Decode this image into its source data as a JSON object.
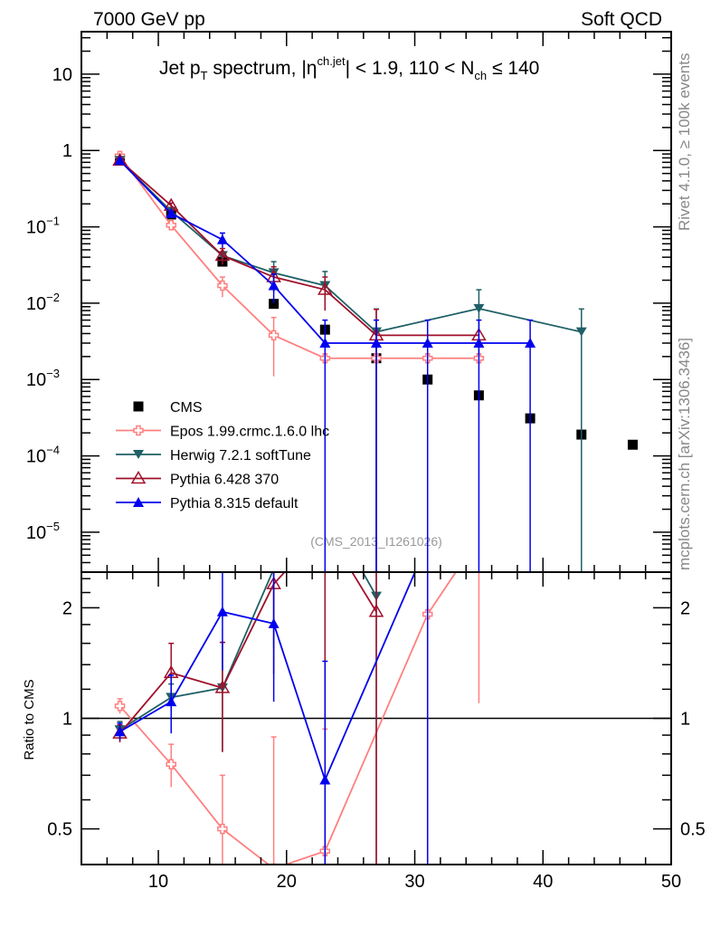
{
  "header": {
    "left": "7000 GeV pp",
    "right": "Soft QCD"
  },
  "title": {
    "a": "Jet p",
    "a_sub": "T",
    "b": " spectrum, |η",
    "b_sup": "ch.jet",
    "c": "| < 1.9, 110 < N",
    "c_sub": "ch",
    "d": " ≤ 140"
  },
  "side": {
    "rivet": "Rivet 4.1.0, ≥ 100k events",
    "mcplots": "mcplots.cern.ch [arXiv:1306.3436]"
  },
  "analysis_id": "(CMS_2013_I1261026)",
  "chart_data": [
    {
      "type": "line",
      "panel": "main",
      "xlim": [
        4,
        50
      ],
      "ylim": [
        3e-06,
        36
      ],
      "yscale": "log",
      "yticks": [
        {
          "v": 10,
          "t": "10"
        },
        {
          "v": 1,
          "t": "1"
        },
        {
          "v": 0.1,
          "t": "10",
          "e": "−1"
        },
        {
          "v": 0.01,
          "t": "10",
          "e": "−2"
        },
        {
          "v": 0.001,
          "t": "10",
          "e": "−3"
        },
        {
          "v": 0.0001,
          "t": "10",
          "e": "−4"
        },
        {
          "v": 1e-05,
          "t": "10",
          "e": "−5"
        }
      ],
      "series": [
        {
          "name": "CMS",
          "color": "#000000",
          "marker": "square",
          "line": false,
          "x": [
            7,
            11,
            15,
            19,
            23,
            27,
            31,
            35,
            39,
            43,
            47
          ],
          "y": [
            0.78,
            0.145,
            0.035,
            0.0098,
            0.0045,
            0.0019,
            0.001,
            0.00062,
            0.00031,
            0.00019,
            0.00014
          ],
          "yerr": [
            0,
            0,
            0,
            0,
            0,
            0,
            0,
            0,
            0,
            0,
            0
          ]
        },
        {
          "name": "Epos 1.99.crmc.1.6.0 lhc",
          "color": "#ff7f7f",
          "marker": "cross-open",
          "x": [
            7,
            11,
            15,
            19,
            23,
            27,
            31,
            35
          ],
          "y": [
            0.85,
            0.105,
            0.017,
            0.0038,
            0.0019,
            0.0019,
            0.0019,
            0.0019
          ],
          "yerr": [
            0.05,
            0.012,
            0.005,
            0.0027,
            0,
            0,
            0,
            0
          ]
        },
        {
          "name": "Herwig 7.2.1 softTune",
          "color": "#1f5f66",
          "marker": "tri-down",
          "x": [
            7,
            11,
            15,
            19,
            23,
            27,
            35,
            43
          ],
          "y": [
            0.74,
            0.16,
            0.042,
            0.025,
            0.017,
            0.0042,
            0.0085,
            0.0042
          ],
          "yerr": [
            0.03,
            0.01,
            0.005,
            0.01,
            0.009,
            0.0042,
            0.0065,
            0.0042
          ]
        },
        {
          "name": "Pythia 6.428 370",
          "color": "#a0102a",
          "marker": "tri-up-open",
          "x": [
            7,
            11,
            15,
            19,
            23,
            27,
            35
          ],
          "y": [
            0.74,
            0.19,
            0.042,
            0.022,
            0.015,
            0.0038,
            0.0038
          ],
          "yerr": [
            0.03,
            0.015,
            0.01,
            0.008,
            0.007,
            0.0045,
            0
          ]
        },
        {
          "name": "Pythia 8.315 default",
          "color": "#0000ee",
          "marker": "tri-up",
          "x": [
            7,
            11,
            15,
            19,
            23,
            27,
            31,
            35,
            39
          ],
          "y": [
            0.74,
            0.15,
            0.068,
            0.017,
            0.003,
            0.003,
            0.003,
            0.003,
            0.003
          ],
          "yerr": [
            0.03,
            0.01,
            0.015,
            0.007,
            0.003,
            0.003,
            0.003,
            0.003,
            0.003
          ]
        }
      ]
    },
    {
      "type": "line",
      "panel": "ratio",
      "ylabel": "Ratio to CMS",
      "xlim": [
        4,
        50
      ],
      "ylim": [
        0.4,
        2.5
      ],
      "yscale": "log",
      "xticks": [
        10,
        20,
        30,
        40
      ],
      "yticks": [
        {
          "v": 0.5,
          "t": "0.5"
        },
        {
          "v": 1,
          "t": "1"
        },
        {
          "v": 2,
          "t": "2"
        }
      ],
      "series": [
        {
          "name": "Epos",
          "color": "#ff7f7f",
          "marker": "cross-open",
          "x": [
            7,
            11,
            15,
            19,
            23,
            31,
            35
          ],
          "y": [
            1.08,
            0.75,
            0.5,
            0.39,
            0.435,
            1.92,
            3.1
          ],
          "yerr": [
            0.05,
            0.1,
            0.2,
            0.5,
            0.5,
            2,
            2
          ]
        },
        {
          "name": "Herwig",
          "color": "#1f5f66",
          "marker": "tri-down",
          "x": [
            7,
            11,
            15,
            19,
            23,
            27
          ],
          "y": [
            0.93,
            1.14,
            1.21,
            2.55,
            3.8,
            2.15
          ],
          "yerr": [
            0.05,
            0.1,
            0.4,
            1,
            3.8,
            2.2
          ]
        },
        {
          "name": "Pythia6",
          "color": "#a0102a",
          "marker": "tri-up-open",
          "x": [
            7,
            11,
            15,
            19,
            23,
            27
          ],
          "y": [
            0.91,
            1.33,
            1.21,
            2.32,
            3.3,
            1.95
          ],
          "yerr": [
            0.05,
            0.27,
            0.4,
            1,
            3.3,
            2
          ]
        },
        {
          "name": "Pythia8",
          "color": "#0000ee",
          "marker": "tri-up",
          "x": [
            7,
            11,
            15,
            19,
            23,
            31
          ],
          "y": [
            0.92,
            1.11,
            1.95,
            1.81,
            0.68,
            3.0
          ],
          "yerr": [
            0.05,
            0.2,
            0.6,
            0.7,
            0.75,
            3
          ]
        }
      ]
    }
  ]
}
